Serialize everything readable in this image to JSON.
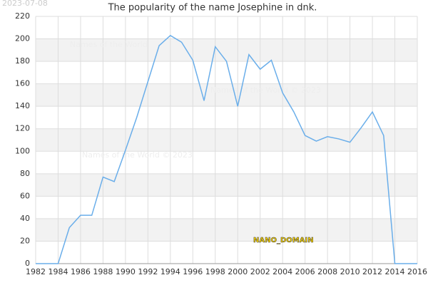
{
  "chart_data": {
    "type": "line",
    "title": "The popularity of the name Josephine in dnk.",
    "x": [
      1982,
      1983,
      1984,
      1985,
      1986,
      1987,
      1988,
      1989,
      1990,
      1991,
      1992,
      1993,
      1994,
      1995,
      1996,
      1997,
      1998,
      1999,
      2000,
      2001,
      2002,
      2003,
      2004,
      2005,
      2006,
      2007,
      2008,
      2009,
      2010,
      2011,
      2012,
      2013,
      2014,
      2015,
      2016
    ],
    "series": [
      {
        "color": "#6aaeea",
        "values": [
          0,
          0,
          0,
          32,
          43,
          43,
          77,
          73,
          101,
          130,
          162,
          194,
          203,
          197,
          181,
          145,
          193,
          180,
          140,
          186,
          173,
          181,
          152,
          135,
          114,
          109,
          113,
          111,
          108,
          121,
          135,
          114,
          0,
          0,
          0
        ]
      }
    ],
    "xlim": [
      1982,
      2016
    ],
    "xticks": [
      1982,
      1984,
      1986,
      1988,
      1990,
      1992,
      1994,
      1996,
      1998,
      2000,
      2002,
      2004,
      2006,
      2008,
      2010,
      2012,
      2014,
      2016
    ],
    "ylim": [
      0,
      220
    ],
    "yticks": [
      0,
      20,
      40,
      60,
      80,
      100,
      120,
      140,
      160,
      180,
      200,
      220
    ],
    "grid": true,
    "annotations": [
      {
        "text": "2023-07-08"
      },
      {
        "text": "Names of the World"
      },
      {
        "text": "Names of the World © 2023"
      },
      {
        "text": "Names of the World © 2023"
      },
      {
        "text": "NANO_DOMAIN"
      }
    ]
  }
}
